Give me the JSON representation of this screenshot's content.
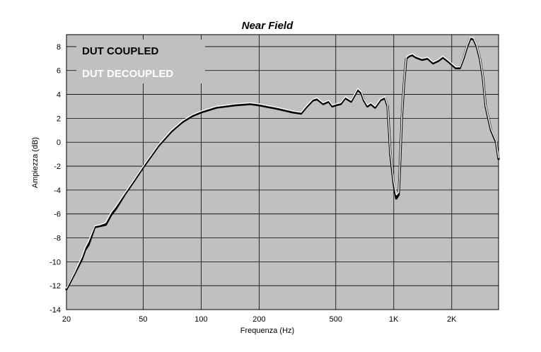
{
  "chart_data": {
    "type": "line",
    "title": "Near Field",
    "xlabel": "Frequenza (Hz)",
    "ylabel": "Ampiezza (dB)",
    "xscale": "log",
    "xlim": [
      20,
      3500
    ],
    "ylim": [
      -14,
      9
    ],
    "yticks": [
      8,
      6,
      4,
      2,
      0,
      -2,
      -4,
      -6,
      -8,
      -10,
      -12,
      -14
    ],
    "ytick_labels": [
      "8",
      "6",
      "4",
      "2",
      "0",
      "-2",
      "-4",
      "-6",
      "-8",
      "-10",
      "-12",
      "-14"
    ],
    "xticks": [
      20,
      50,
      100,
      200,
      500,
      1000,
      2000
    ],
    "xtick_labels": [
      "20",
      "50",
      "100",
      "200",
      "500",
      "1K",
      "2K"
    ],
    "grid": true,
    "background_color": "#c0c0c0",
    "legend_position": "top-left",
    "series": [
      {
        "name": "DUT COUPLED",
        "color": "#000000",
        "x": [
          20,
          22,
          24,
          25,
          26,
          28,
          30,
          32,
          34,
          36,
          40,
          45,
          50,
          60,
          70,
          80,
          90,
          100,
          120,
          150,
          180,
          200,
          250,
          300,
          330,
          350,
          380,
          400,
          430,
          460,
          480,
          500,
          530,
          560,
          600,
          650,
          680,
          700,
          730,
          760,
          800,
          850,
          900,
          930,
          960,
          1000,
          1030,
          1060,
          1080,
          1100,
          1130,
          1160,
          1200,
          1250,
          1300,
          1400,
          1500,
          1600,
          1700,
          1800,
          1900,
          2000,
          2100,
          2200,
          2300,
          2400,
          2500,
          2600,
          2700,
          2800,
          2900,
          3000,
          3200,
          3400,
          3500
        ],
        "y": [
          -12.3,
          -11.0,
          -9.8,
          -9.0,
          -8.6,
          -7.1,
          -7.0,
          -6.9,
          -6.1,
          -5.6,
          -4.4,
          -3.2,
          -2.1,
          -0.3,
          0.9,
          1.7,
          2.2,
          2.5,
          2.9,
          3.1,
          3.2,
          3.1,
          2.8,
          2.5,
          2.4,
          2.9,
          3.5,
          3.6,
          3.2,
          3.4,
          3.0,
          3.1,
          3.2,
          3.7,
          3.4,
          4.4,
          4.1,
          3.5,
          3.0,
          3.2,
          2.9,
          3.5,
          3.7,
          3.0,
          -1.0,
          -3.5,
          -4.7,
          -4.4,
          -1.5,
          2.0,
          5.0,
          7.0,
          7.2,
          7.3,
          7.1,
          6.9,
          7.0,
          6.6,
          6.8,
          7.1,
          6.8,
          6.5,
          6.2,
          6.2,
          7.0,
          8.0,
          8.7,
          8.6,
          8.0,
          7.0,
          5.5,
          3.0,
          1.0,
          0.0,
          -1.4
        ]
      },
      {
        "name": "DUT DECOUPLED",
        "color": "#ffffff",
        "x": [
          20,
          22,
          24,
          25,
          26,
          28,
          30,
          32,
          34,
          36,
          40,
          45,
          50,
          60,
          70,
          80,
          90,
          100,
          120,
          150,
          180,
          200,
          250,
          300,
          330,
          350,
          380,
          400,
          430,
          460,
          480,
          500,
          530,
          560,
          600,
          650,
          680,
          700,
          730,
          760,
          800,
          850,
          900,
          930,
          960,
          1000,
          1030,
          1060,
          1080,
          1100,
          1130,
          1160,
          1200,
          1250,
          1300,
          1400,
          1500,
          1600,
          1700,
          1800,
          1900,
          2000,
          2100,
          2200,
          2300,
          2400,
          2500,
          2600,
          2700,
          2800,
          2900,
          3000,
          3200,
          3400,
          3500
        ],
        "y": [
          -12.2,
          -10.9,
          -9.6,
          -8.8,
          -8.3,
          -7.0,
          -6.9,
          -6.7,
          -5.9,
          -5.4,
          -4.3,
          -3.1,
          -2.0,
          -0.2,
          1.0,
          1.8,
          2.3,
          2.6,
          3.0,
          3.2,
          3.3,
          3.2,
          2.9,
          2.6,
          2.5,
          3.0,
          3.6,
          3.7,
          3.3,
          3.5,
          3.1,
          3.2,
          3.3,
          3.8,
          3.5,
          4.5,
          4.2,
          3.6,
          3.1,
          3.3,
          3.0,
          3.6,
          3.8,
          3.1,
          -0.8,
          -3.3,
          -4.4,
          -4.2,
          -1.3,
          2.2,
          5.1,
          7.1,
          7.3,
          7.4,
          7.2,
          7.0,
          7.1,
          6.7,
          6.9,
          7.2,
          6.9,
          6.6,
          6.3,
          6.3,
          7.1,
          8.1,
          8.8,
          8.7,
          8.1,
          7.1,
          5.6,
          3.1,
          1.1,
          0.1,
          -1.3
        ]
      }
    ]
  }
}
